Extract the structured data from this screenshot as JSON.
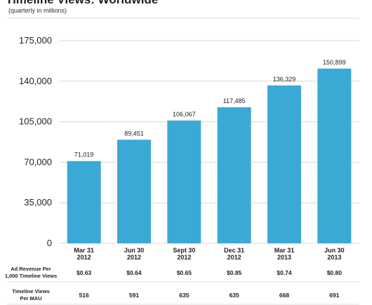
{
  "chart_data": {
    "type": "bar",
    "title": "Timeline Views: Worldwide",
    "subtitle": "(quarterly in millions)",
    "xlabel": "",
    "ylabel": "",
    "ylim": [
      0,
      175000
    ],
    "yticks": [
      "0",
      "35,000",
      "70,000",
      "105,000",
      "140,000",
      "175,000"
    ],
    "ytick_values": [
      0,
      35000,
      70000,
      105000,
      140000,
      175000
    ],
    "grid": true,
    "bar_color": "#3aa9d6",
    "categories": [
      [
        "Mar 31",
        "2012"
      ],
      [
        "Jun 30",
        "2012"
      ],
      [
        "Sept 30",
        "2012"
      ],
      [
        "Dec 31",
        "2012"
      ],
      [
        "Mar 31",
        "2013"
      ],
      [
        "Jun 30",
        "2013"
      ]
    ],
    "values": [
      71019,
      89451,
      106067,
      117485,
      136329,
      150899
    ],
    "value_labels": [
      "71,019",
      "89,451",
      "106,067",
      "117,485",
      "136,329",
      "150,899"
    ],
    "table_rows": [
      {
        "header": [
          "Ad Revenue Per",
          "1,000 Timeline Views"
        ],
        "cells": [
          "$0.63",
          "$0.64",
          "$0.65",
          "$0.85",
          "$0.74",
          "$0.80"
        ]
      },
      {
        "header": [
          "Timeline Views",
          "Per MAU"
        ],
        "cells": [
          "516",
          "591",
          "635",
          "635",
          "668",
          "691"
        ]
      }
    ]
  }
}
